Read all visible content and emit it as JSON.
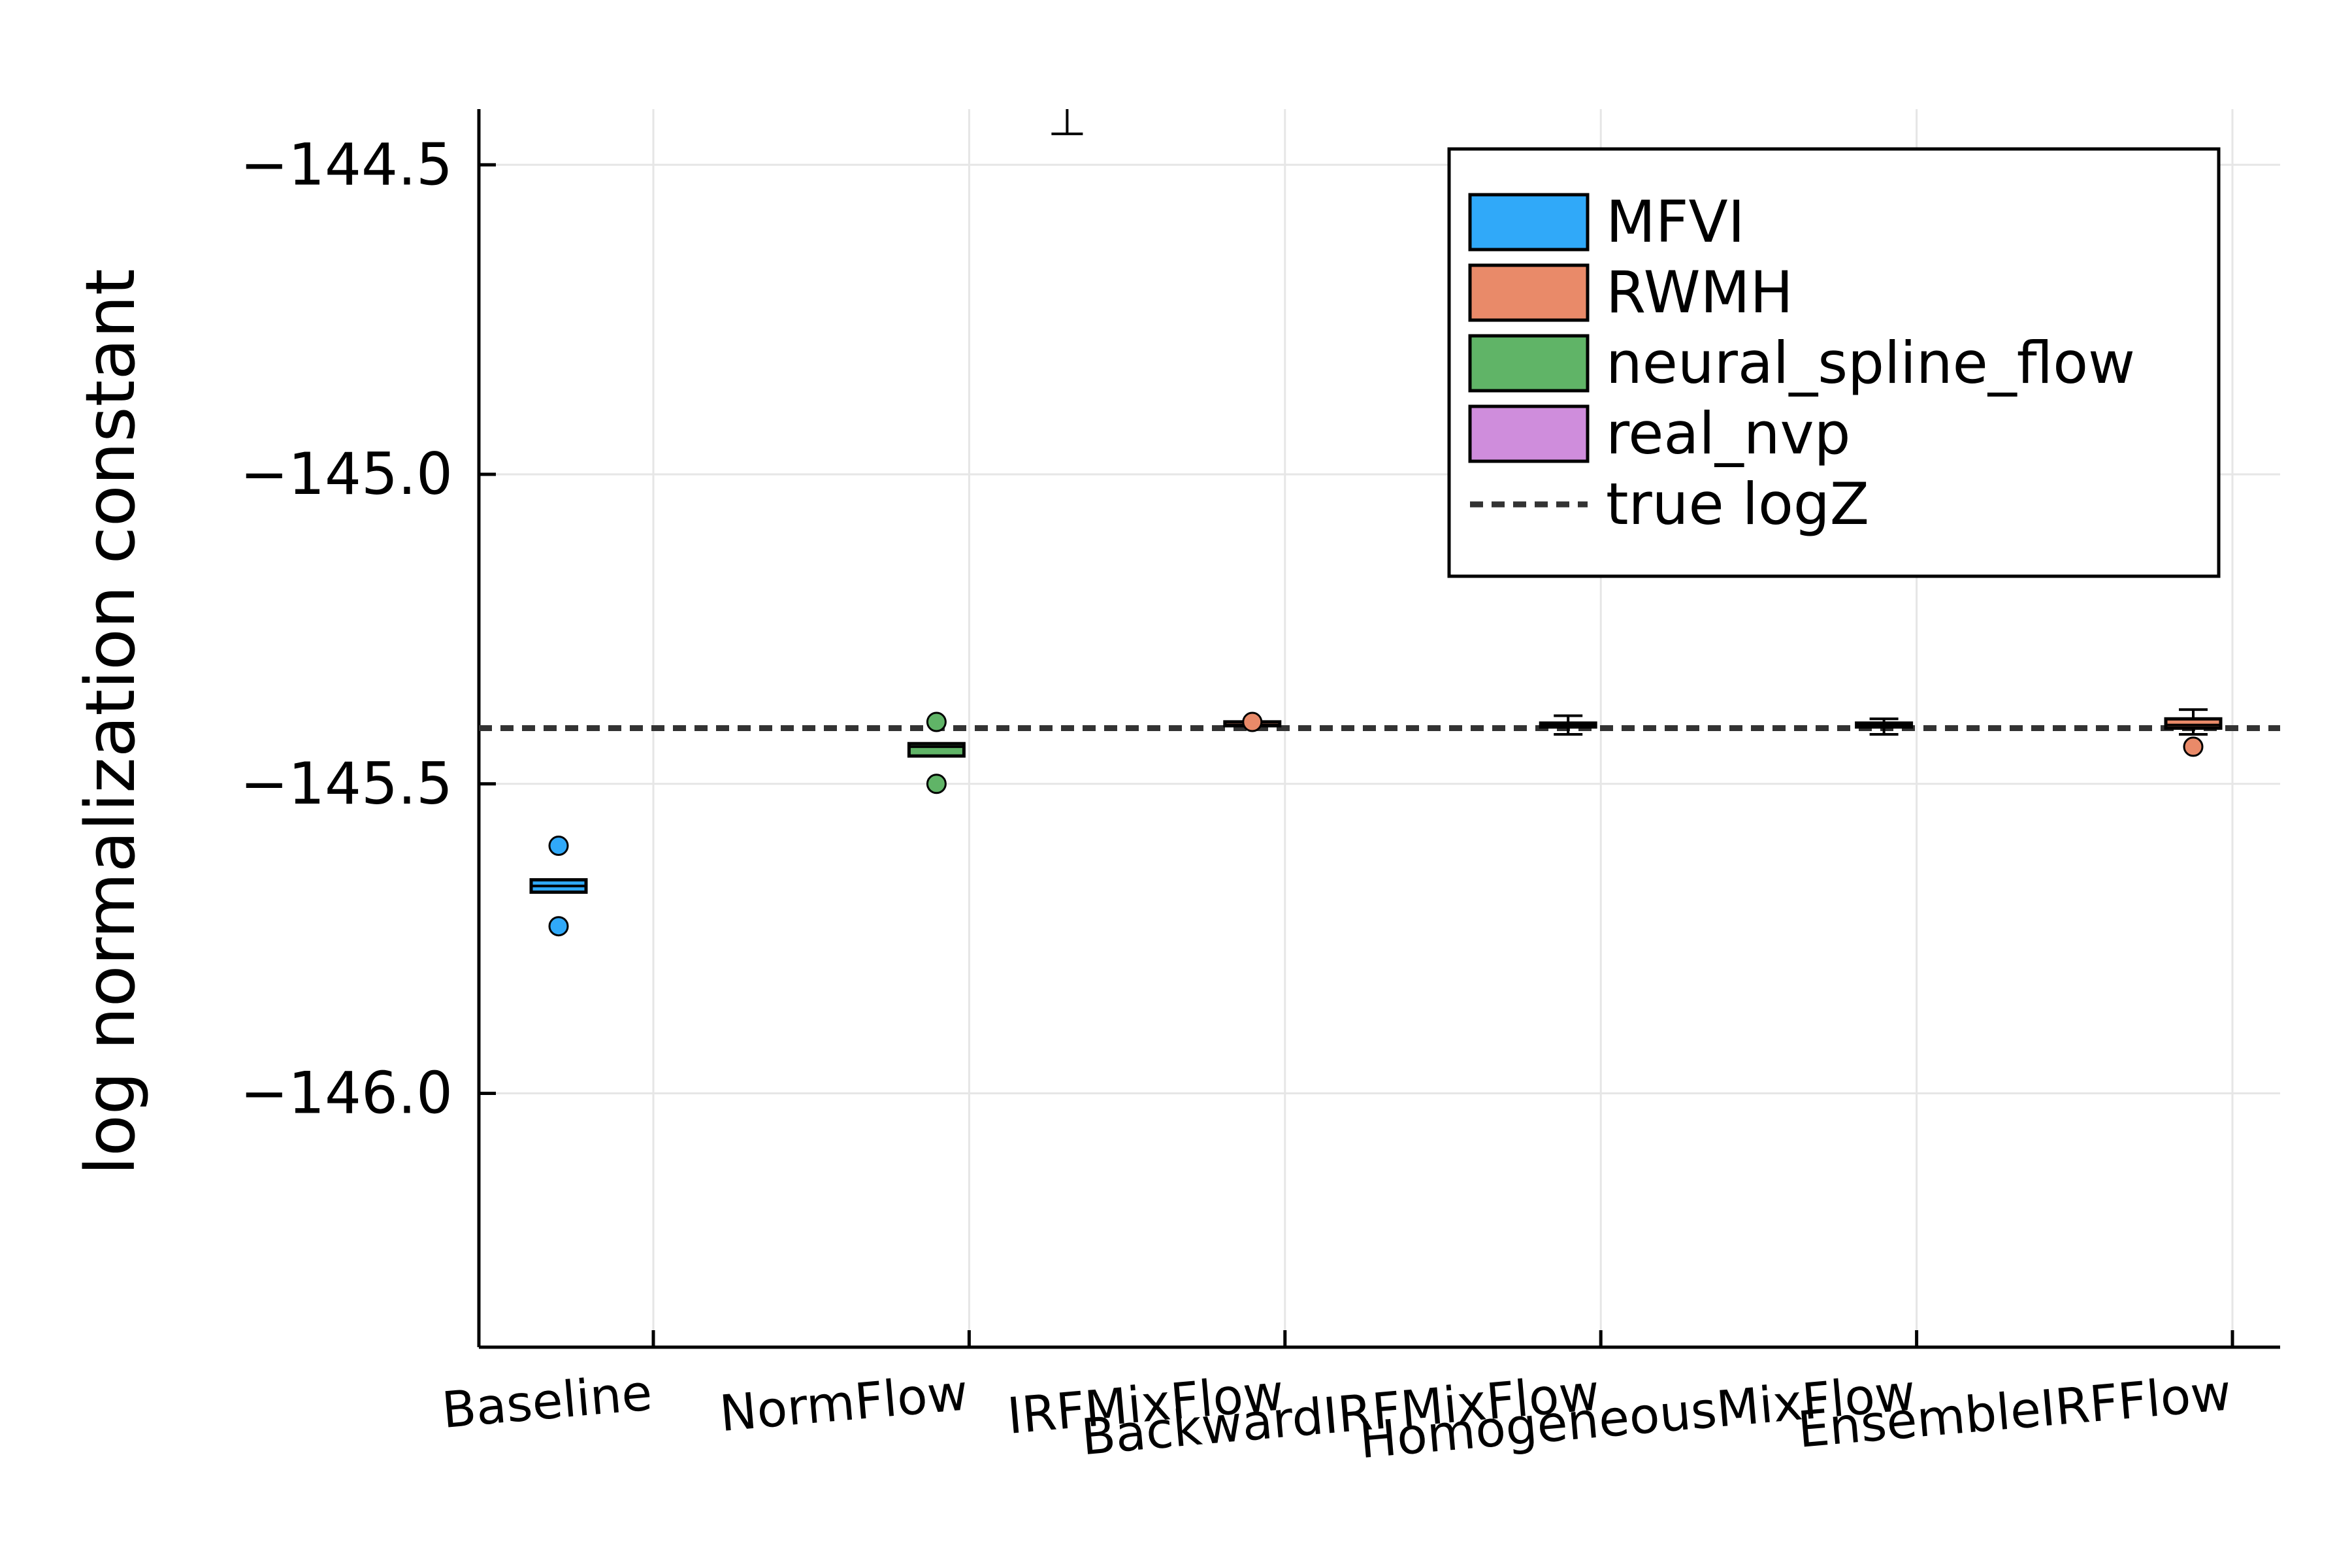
{
  "chart_data": {
    "type": "box",
    "ylabel": "log normalization constant",
    "xlabel": "",
    "title": "",
    "ylim": [
      -146.41,
      -144.41
    ],
    "yticks": [
      -144.5,
      -145.0,
      -145.5,
      -146.0
    ],
    "ytick_labels": [
      "−144.5",
      "−145.0",
      "−145.5",
      "−146.0"
    ],
    "categories": [
      "Baseline",
      "NormFlow",
      "IRFMixFlow",
      "BackwardIRFMixFlow",
      "HomogeneousMixFlow",
      "EnsembleIRFFlow"
    ],
    "grid": true,
    "legend_position": "top-right",
    "true_logZ": -145.41,
    "colors": {
      "MFVI": "#30a9f9",
      "RWMH": "#e98a69",
      "neural_spline_flow": "#60b467",
      "real_nvp": "#cf8ddc",
      "true_logZ": "#333333"
    },
    "legend": [
      {
        "label": "MFVI",
        "kind": "box",
        "color": "#30a9f9"
      },
      {
        "label": "RWMH",
        "kind": "box",
        "color": "#e98a69"
      },
      {
        "label": "neural_spline_flow",
        "kind": "box",
        "color": "#60b467"
      },
      {
        "label": "real_nvp",
        "kind": "box",
        "color": "#cf8ddc"
      },
      {
        "label": "true logZ",
        "kind": "dashed",
        "color": "#333333"
      }
    ],
    "boxes": [
      {
        "category": "Baseline",
        "series": "MFVI",
        "q1": -145.675,
        "median": -145.665,
        "q3": -145.655,
        "whisker_low": -145.675,
        "whisker_high": -145.655,
        "outliers": [
          -145.6,
          -145.73
        ]
      },
      {
        "category": "NormFlow",
        "series": "neural_spline_flow",
        "q1": -145.455,
        "median": -145.44,
        "q3": -145.435,
        "whisker_low": -145.455,
        "whisker_high": -145.435,
        "outliers": [
          -145.4,
          -145.5
        ]
      },
      {
        "category": "NormFlow",
        "series": "real_nvp",
        "q1": -144.45,
        "median": -144.45,
        "q3": -144.45,
        "whisker_low": -144.45,
        "whisker_high": -144.41,
        "outliers": []
      },
      {
        "category": "IRFMixFlow",
        "series": "RWMH",
        "q1": -145.408,
        "median": -145.405,
        "q3": -145.403,
        "whisker_low": -145.408,
        "whisker_high": -145.403,
        "outliers": [
          -145.4
        ]
      },
      {
        "category": "BackwardIRFMixFlow",
        "series": "RWMH",
        "q1": -145.405,
        "median": -145.405,
        "q3": -145.405,
        "whisker_low": -145.42,
        "whisker_high": -145.39,
        "outliers": []
      },
      {
        "category": "HomogeneousMixFlow",
        "series": "RWMH",
        "q1": -145.405,
        "median": -145.405,
        "q3": -145.405,
        "whisker_low": -145.42,
        "whisker_high": -145.395,
        "outliers": []
      },
      {
        "category": "EnsembleIRFFlow",
        "series": "RWMH",
        "q1": -145.41,
        "median": -145.405,
        "q3": -145.395,
        "whisker_low": -145.42,
        "whisker_high": -145.38,
        "outliers": [
          -145.44
        ]
      }
    ]
  }
}
